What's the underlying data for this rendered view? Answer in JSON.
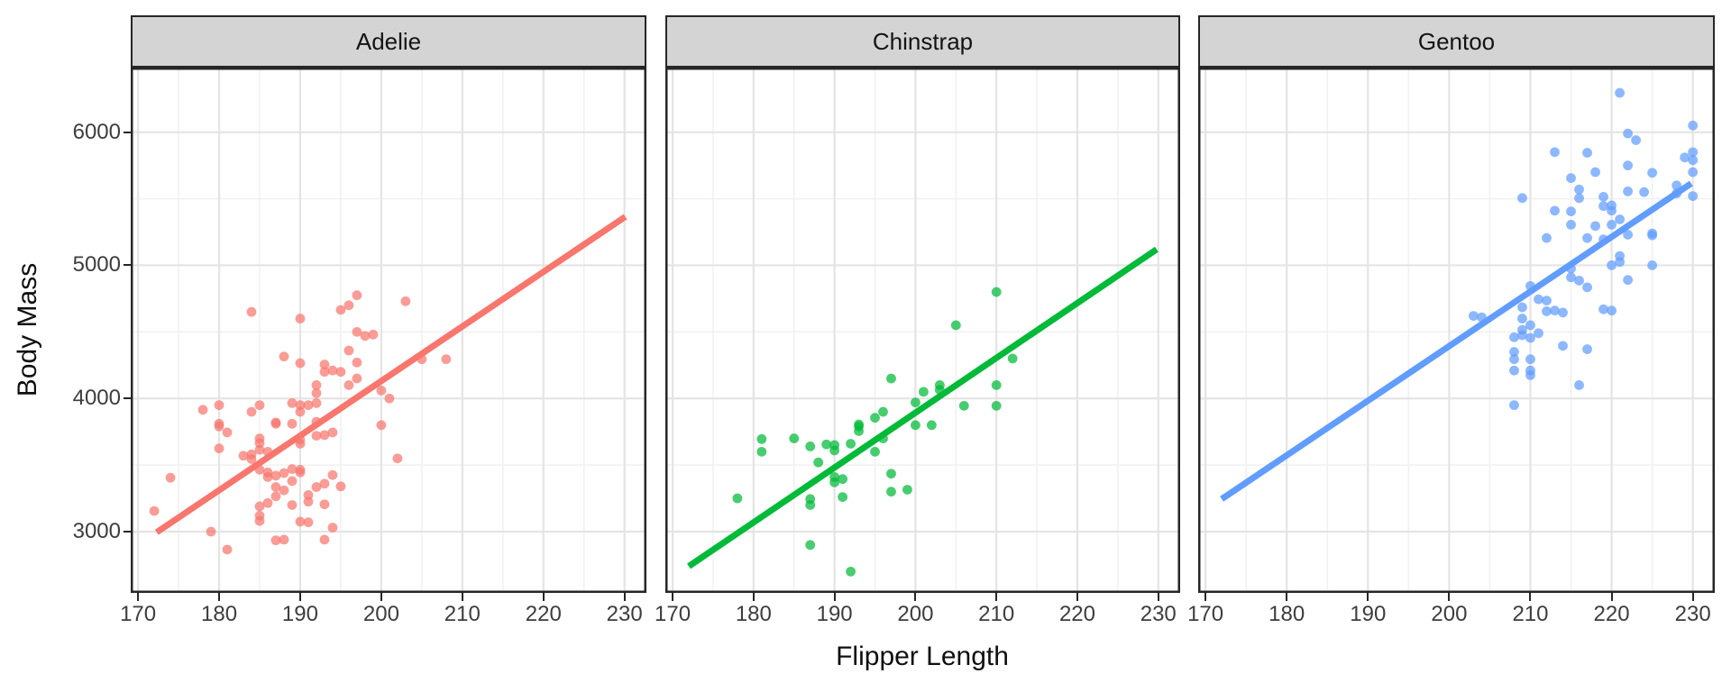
{
  "figure": {
    "background": "#ffffff",
    "strip_fill": "#d4d4d4",
    "border_color": "#262626",
    "major_grid_color": "#e4e4e4",
    "minor_grid_color": "#f1f1f1",
    "tick_text_color": "#3d3d3d",
    "title_text_color": "#0f0f0f"
  },
  "chart_data": {
    "type": "scatter",
    "title": "",
    "xlabel": "Flipper Length",
    "ylabel": "Body Mass",
    "x_ticks": [
      170,
      180,
      190,
      200,
      210,
      220,
      230
    ],
    "x_minor_ticks": [
      175,
      185,
      195,
      205,
      215,
      225
    ],
    "y_ticks": [
      3000,
      4000,
      5000,
      6000
    ],
    "y_minor_ticks": [
      3500,
      4500,
      5500
    ],
    "xlim": [
      169.1,
      232.7
    ],
    "ylim": [
      2540,
      6485
    ],
    "grid": "on",
    "legend_position": "none",
    "facets": [
      {
        "label": "Adelie",
        "color": "#F8766D",
        "trend": {
          "x1": 172.3,
          "y1": 2995,
          "x2": 230.1,
          "y2": 5365
        },
        "points": [
          [
            172,
            3155
          ],
          [
            174,
            3405
          ],
          [
            178,
            3915
          ],
          [
            179,
            3000
          ],
          [
            180,
            3950
          ],
          [
            180,
            3790
          ],
          [
            180,
            3810
          ],
          [
            181,
            3745
          ],
          [
            180,
            3625
          ],
          [
            181,
            2865
          ],
          [
            183,
            3570
          ],
          [
            184,
            3580
          ],
          [
            184,
            3545
          ],
          [
            184,
            4650
          ],
          [
            184,
            3900
          ],
          [
            185,
            3950
          ],
          [
            185,
            3700
          ],
          [
            185,
            3665
          ],
          [
            185,
            3615
          ],
          [
            185,
            3465
          ],
          [
            185,
            3190
          ],
          [
            185,
            3120
          ],
          [
            185,
            3080
          ],
          [
            186,
            3600
          ],
          [
            186,
            3410
          ],
          [
            186,
            3445
          ],
          [
            186,
            3215
          ],
          [
            187,
            3265
          ],
          [
            187,
            3820
          ],
          [
            187,
            3810
          ],
          [
            187,
            3420
          ],
          [
            187,
            3335
          ],
          [
            187,
            2935
          ],
          [
            188,
            4315
          ],
          [
            188,
            3440
          ],
          [
            188,
            3310
          ],
          [
            188,
            2940
          ],
          [
            189,
            3810
          ],
          [
            189,
            3470
          ],
          [
            189,
            3965
          ],
          [
            189,
            3380
          ],
          [
            189,
            3200
          ],
          [
            190,
            4600
          ],
          [
            190,
            4265
          ],
          [
            190,
            3950
          ],
          [
            190,
            3900
          ],
          [
            190,
            3690
          ],
          [
            190,
            3660
          ],
          [
            190,
            3465
          ],
          [
            190,
            3445
          ],
          [
            190,
            3075
          ],
          [
            191,
            3950
          ],
          [
            191,
            3275
          ],
          [
            191,
            3225
          ],
          [
            191,
            3070
          ],
          [
            192,
            4100
          ],
          [
            192,
            4040
          ],
          [
            192,
            3965
          ],
          [
            192,
            3825
          ],
          [
            192,
            3720
          ],
          [
            192,
            3335
          ],
          [
            193,
            4255
          ],
          [
            193,
            4200
          ],
          [
            193,
            3725
          ],
          [
            193,
            3360
          ],
          [
            193,
            3205
          ],
          [
            193,
            2940
          ],
          [
            194,
            4210
          ],
          [
            194,
            3745
          ],
          [
            194,
            3425
          ],
          [
            194,
            3030
          ],
          [
            195,
            4665
          ],
          [
            195,
            4200
          ],
          [
            195,
            3340
          ],
          [
            196,
            4700
          ],
          [
            196,
            4360
          ],
          [
            196,
            4100
          ],
          [
            197,
            4775
          ],
          [
            197,
            4500
          ],
          [
            197,
            4270
          ],
          [
            197,
            4150
          ],
          [
            198,
            4470
          ],
          [
            199,
            4480
          ],
          [
            200,
            4060
          ],
          [
            200,
            3800
          ],
          [
            201,
            4000
          ],
          [
            202,
            3550
          ],
          [
            203,
            4730
          ],
          [
            205,
            4295
          ],
          [
            208,
            4295
          ]
        ]
      },
      {
        "label": "Chinstrap",
        "color": "#00BA38",
        "trend": {
          "x1": 172.0,
          "y1": 2740,
          "x2": 229.8,
          "y2": 5120
        },
        "points": [
          [
            178,
            3250
          ],
          [
            181,
            3695
          ],
          [
            181,
            3600
          ],
          [
            185,
            3700
          ],
          [
            187,
            3640
          ],
          [
            187,
            3245
          ],
          [
            187,
            3200
          ],
          [
            187,
            2900
          ],
          [
            188,
            3520
          ],
          [
            189,
            3655
          ],
          [
            190,
            3650
          ],
          [
            190,
            3610
          ],
          [
            190,
            3410
          ],
          [
            190,
            3370
          ],
          [
            191,
            3395
          ],
          [
            191,
            3260
          ],
          [
            192,
            3660
          ],
          [
            192,
            2700
          ],
          [
            193,
            3805
          ],
          [
            193,
            3790
          ],
          [
            193,
            3755
          ],
          [
            195,
            3855
          ],
          [
            195,
            3600
          ],
          [
            196,
            3900
          ],
          [
            196,
            3700
          ],
          [
            197,
            4150
          ],
          [
            197,
            3435
          ],
          [
            197,
            3300
          ],
          [
            199,
            3315
          ],
          [
            200,
            3970
          ],
          [
            200,
            3800
          ],
          [
            201,
            4050
          ],
          [
            202,
            3800
          ],
          [
            203,
            4100
          ],
          [
            203,
            4065
          ],
          [
            205,
            4550
          ],
          [
            206,
            3945
          ],
          [
            210,
            4800
          ],
          [
            210,
            4100
          ],
          [
            210,
            3945
          ],
          [
            212,
            4300
          ]
        ]
      },
      {
        "label": "Gentoo",
        "color": "#619CFF",
        "trend": {
          "x1": 172.0,
          "y1": 3245,
          "x2": 229.8,
          "y2": 5615
        },
        "points": [
          [
            203,
            4620
          ],
          [
            204,
            4610
          ],
          [
            208,
            4460
          ],
          [
            208,
            4350
          ],
          [
            208,
            4295
          ],
          [
            208,
            4210
          ],
          [
            208,
            3950
          ],
          [
            209,
            5505
          ],
          [
            209,
            4685
          ],
          [
            209,
            4600
          ],
          [
            209,
            4515
          ],
          [
            209,
            4475
          ],
          [
            210,
            4845
          ],
          [
            210,
            4550
          ],
          [
            210,
            4455
          ],
          [
            210,
            4295
          ],
          [
            210,
            4210
          ],
          [
            210,
            4175
          ],
          [
            211,
            4745
          ],
          [
            211,
            4490
          ],
          [
            212,
            5205
          ],
          [
            212,
            4735
          ],
          [
            212,
            4655
          ],
          [
            213,
            5850
          ],
          [
            213,
            5410
          ],
          [
            213,
            4660
          ],
          [
            214,
            4645
          ],
          [
            214,
            4395
          ],
          [
            215,
            5655
          ],
          [
            215,
            5405
          ],
          [
            215,
            5305
          ],
          [
            215,
            4975
          ],
          [
            215,
            4910
          ],
          [
            216,
            5570
          ],
          [
            216,
            5505
          ],
          [
            216,
            4885
          ],
          [
            216,
            4100
          ],
          [
            217,
            5845
          ],
          [
            217,
            5205
          ],
          [
            217,
            4835
          ],
          [
            217,
            4370
          ],
          [
            218,
            5700
          ],
          [
            218,
            5295
          ],
          [
            219,
            5515
          ],
          [
            219,
            5445
          ],
          [
            219,
            5195
          ],
          [
            219,
            4670
          ],
          [
            220,
            5450
          ],
          [
            220,
            5410
          ],
          [
            220,
            5305
          ],
          [
            220,
            5000
          ],
          [
            220,
            4660
          ],
          [
            221,
            6295
          ],
          [
            221,
            5345
          ],
          [
            221,
            5070
          ],
          [
            221,
            5025
          ],
          [
            222,
            5990
          ],
          [
            222,
            5750
          ],
          [
            222,
            5555
          ],
          [
            222,
            5230
          ],
          [
            222,
            4890
          ],
          [
            223,
            5940
          ],
          [
            224,
            5550
          ],
          [
            225,
            5695
          ],
          [
            225,
            5240
          ],
          [
            225,
            5225
          ],
          [
            225,
            5000
          ],
          [
            228,
            5600
          ],
          [
            228,
            5540
          ],
          [
            229,
            5810
          ],
          [
            230,
            6050
          ],
          [
            230,
            5850
          ],
          [
            230,
            5790
          ],
          [
            230,
            5700
          ],
          [
            230,
            5520
          ]
        ]
      }
    ]
  }
}
